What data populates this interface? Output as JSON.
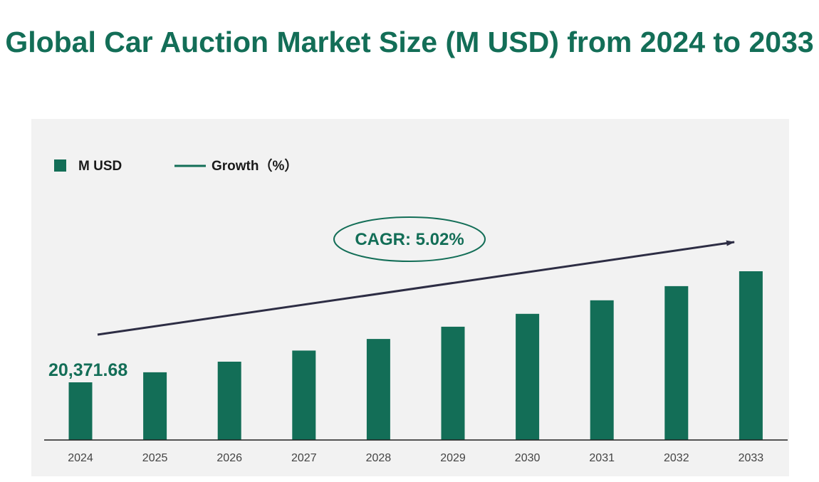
{
  "title": "Global Car Auction Market Size (M USD) from 2024 to 2033",
  "legend": {
    "bar_label": "M USD",
    "line_label": "Growth（%）"
  },
  "annotation": {
    "cagr": "CAGR:  5.02%",
    "first_value_label": "20,371.68"
  },
  "colors": {
    "bar": "#136e57",
    "title": "#136e57",
    "arrow": "#2d2d44",
    "panel": "#f2f2f2"
  },
  "chart_data": {
    "type": "bar",
    "title": "Global Car Auction Market Size (M USD) from 2024 to 2033",
    "categories": [
      "2024",
      "2025",
      "2026",
      "2027",
      "2028",
      "2029",
      "2030",
      "2031",
      "2032",
      "2033"
    ],
    "series": [
      {
        "name": "M USD",
        "values": [
          20371.68,
          21394.34,
          22468.34,
          23596.25,
          24780.78,
          26024.78,
          27331.22,
          28703.25,
          30144.15,
          31657.39
        ]
      }
    ],
    "data_labels": [
      {
        "category": "2024",
        "text": "20,371.68"
      }
    ],
    "legend_entries": [
      "M USD",
      "Growth（%）"
    ],
    "legend_position": "top-left",
    "annotation": "CAGR:  5.02%",
    "xlabel": "",
    "ylabel": "",
    "grid": false
  }
}
